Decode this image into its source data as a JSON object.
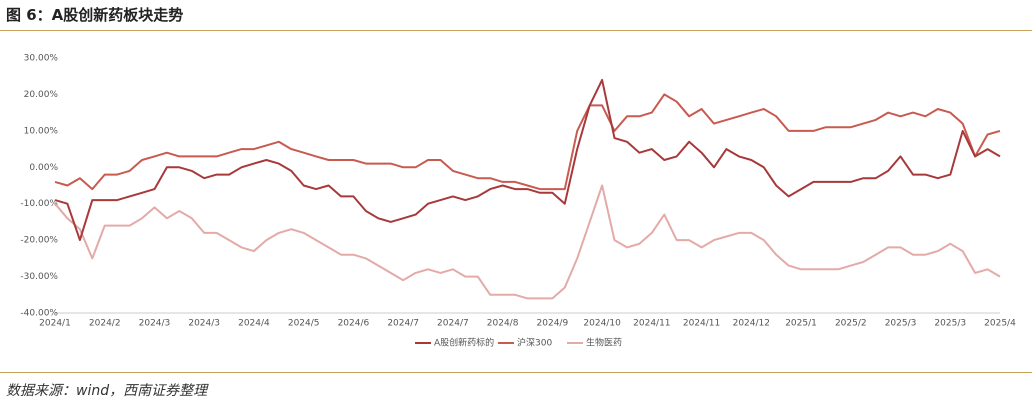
{
  "chart_data": {
    "type": "line",
    "title": "图 6：A股创新药板块走势",
    "source": "数据来源：wind，西南证券整理",
    "categories": [
      "2024/1",
      null,
      null,
      null,
      "2024/2",
      null,
      null,
      null,
      "2024/3",
      null,
      null,
      null,
      "2024/3",
      null,
      null,
      null,
      "2024/4",
      null,
      null,
      null,
      "2024/5",
      null,
      null,
      null,
      "2024/6",
      null,
      null,
      null,
      "2024/7",
      null,
      null,
      null,
      "2024/7",
      null,
      null,
      null,
      "2024/8",
      null,
      null,
      null,
      "2024/9",
      null,
      null,
      null,
      "2024/10",
      null,
      null,
      null,
      "2024/11",
      null,
      null,
      null,
      "2024/11",
      null,
      null,
      null,
      "2024/12",
      null,
      null,
      null,
      "2025/1",
      null,
      null,
      null,
      "2025/2",
      null,
      null,
      null,
      "2025/3",
      null,
      null,
      null,
      "2025/3",
      null,
      null,
      null,
      "2025/4"
    ],
    "series": [
      {
        "name": "A股创新药标的",
        "color": "#a8393a",
        "values": [
          -9,
          -10,
          -20,
          -9,
          -9,
          -9,
          -8,
          -7,
          -6,
          0,
          0,
          -1,
          -3,
          -2,
          -2,
          0,
          1,
          2,
          1,
          -1,
          -5,
          -6,
          -5,
          -8,
          -8,
          -12,
          -14,
          -15,
          -14,
          -13,
          -10,
          -9,
          -8,
          -9,
          -8,
          -6,
          -5,
          -6,
          -6,
          -7,
          -7,
          -10,
          5,
          17,
          24,
          8,
          7,
          4,
          5,
          2,
          3,
          7,
          4,
          0,
          5,
          3,
          2,
          0,
          -5,
          -8,
          -6,
          -4,
          -4,
          -4,
          -4,
          -3,
          -3,
          -1,
          3,
          -2,
          -2,
          -3,
          -2,
          10,
          3,
          5,
          3
        ]
      },
      {
        "name": "沪深300",
        "color": "#c85a50",
        "values": [
          -4,
          -5,
          -3,
          -6,
          -2,
          -2,
          -1,
          2,
          3,
          4,
          3,
          3,
          3,
          3,
          4,
          5,
          5,
          6,
          7,
          5,
          4,
          3,
          2,
          2,
          2,
          1,
          1,
          1,
          0,
          0,
          2,
          2,
          -1,
          -2,
          -3,
          -3,
          -4,
          -4,
          -5,
          -6,
          -6,
          -6,
          10,
          17,
          17,
          10,
          14,
          14,
          15,
          20,
          18,
          14,
          16,
          12,
          13,
          14,
          15,
          16,
          14,
          10,
          10,
          10,
          11,
          11,
          11,
          12,
          13,
          15,
          14,
          15,
          14,
          16,
          15,
          12,
          3,
          9,
          10
        ]
      },
      {
        "name": "生物医药",
        "color": "#e3aaa8",
        "values": [
          -10,
          -14,
          -17,
          -25,
          -16,
          -16,
          -16,
          -14,
          -11,
          -14,
          -12,
          -14,
          -18,
          -18,
          -20,
          -22,
          -23,
          -20,
          -18,
          -17,
          -18,
          -20,
          -22,
          -24,
          -24,
          -25,
          -27,
          -29,
          -31,
          -29,
          -28,
          -29,
          -28,
          -30,
          -30,
          -35,
          -35,
          -35,
          -36,
          -36,
          -36,
          -33,
          -25,
          -15,
          -5,
          -20,
          -22,
          -21,
          -18,
          -13,
          -20,
          -20,
          -22,
          -20,
          -19,
          -18,
          -18,
          -20,
          -24,
          -27,
          -28,
          -28,
          -28,
          -28,
          -27,
          -26,
          -24,
          -22,
          -22,
          -24,
          -24,
          -23,
          -21,
          -23,
          -29,
          -28,
          -30
        ]
      }
    ],
    "ylim": [
      -40,
      30
    ],
    "yticks": [
      {
        "value": -40,
        "label": "-40.00%"
      },
      {
        "value": -30,
        "label": "-30.00%"
      },
      {
        "value": -20,
        "label": "-20.00%"
      },
      {
        "value": -10,
        "label": "-10.00%"
      },
      {
        "value": 0,
        "label": "0.00%"
      },
      {
        "value": 10,
        "label": "10.00%"
      },
      {
        "value": 20,
        "label": "20.00%"
      },
      {
        "value": 30,
        "label": "30.00%"
      }
    ],
    "grid": false,
    "legend": "bottom"
  }
}
